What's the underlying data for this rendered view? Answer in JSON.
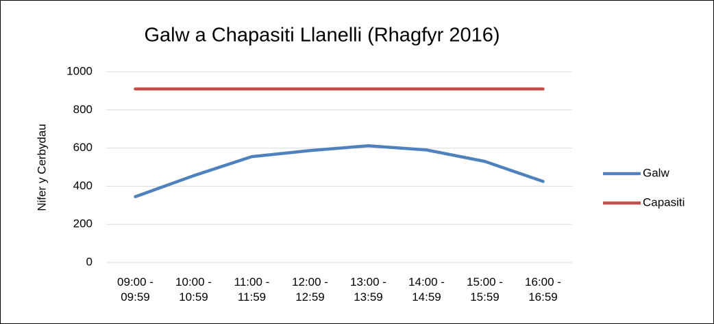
{
  "chart_data": {
    "type": "line",
    "title": "Galw a Chapasiti Llanelli (Rhagfyr 2016)",
    "y_label": "Nifer y Cerbydau",
    "categories": [
      "09:00 - 09:59",
      "10:00 - 10:59",
      "11:00 - 11:59",
      "12:00 - 12:59",
      "13:00 - 13:59",
      "14:00 - 14:59",
      "15:00 - 15:59",
      "16:00 - 16:59"
    ],
    "series": [
      {
        "name": "Galw",
        "color": "#4f81bd",
        "values": [
          345,
          455,
          555,
          587,
          612,
          590,
          530,
          425
        ]
      },
      {
        "name": "Capasiti",
        "color": "#c0504d",
        "values": [
          910,
          910,
          910,
          910,
          910,
          910,
          910,
          910
        ]
      }
    ],
    "ylim": [
      0,
      1000
    ],
    "yticks": [
      0,
      200,
      400,
      600,
      800,
      1000
    ],
    "grid": true,
    "legend": "right"
  }
}
